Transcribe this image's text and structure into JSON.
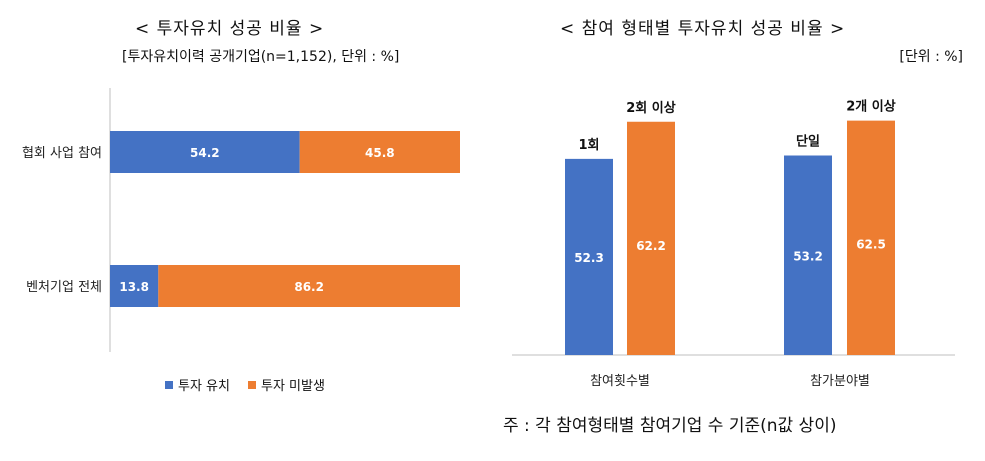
{
  "colors": {
    "invest": "#4472C4",
    "noninvest": "#ED7D31",
    "axis": "#BFBFBF"
  },
  "chart_data": [
    {
      "type": "bar",
      "orientation": "horizontal",
      "stacked": true,
      "title": "< 투자유치 성공 비율 >",
      "subtitle": "[투자유치이력 공개기업(n=1,152), 단위 : %]",
      "categories": [
        "협회 사업 참여",
        "벤처기업 전체"
      ],
      "series": [
        {
          "name": "투자 유치",
          "values": [
            54.2,
            13.8
          ]
        },
        {
          "name": "투자 미발생",
          "values": [
            45.8,
            86.2
          ]
        }
      ],
      "xlim": [
        0,
        100
      ],
      "legend": "bottom"
    },
    {
      "type": "bar",
      "orientation": "vertical",
      "title": "< 참여 형태별 투자유치 성공 비율 >",
      "subtitle": "[단위 : %]",
      "categories": [
        "참여횟수별",
        "참가분야별"
      ],
      "bars": [
        {
          "category": "참여횟수별",
          "label": "1회",
          "value": 52.3,
          "color": "#4472C4"
        },
        {
          "category": "참여횟수별",
          "label": "2회 이상",
          "value": 62.2,
          "color": "#ED7D31"
        },
        {
          "category": "참가분야별",
          "label": "단일",
          "value": 53.2,
          "color": "#4472C4"
        },
        {
          "category": "참가분야별",
          "label": "2개 이상",
          "value": 62.5,
          "color": "#ED7D31"
        }
      ],
      "ylim": [
        0,
        80
      ]
    }
  ],
  "note": "주 : 각 참여형태별 참여기업 수 기준(n값 상이)"
}
